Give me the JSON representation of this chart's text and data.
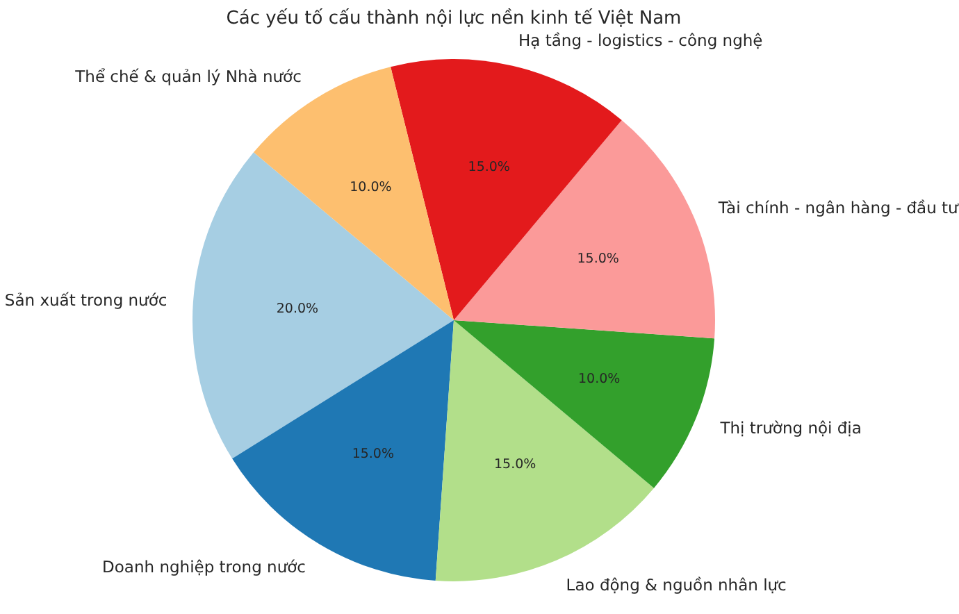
{
  "chart_data": {
    "type": "pie",
    "title": "Các yếu tố cấu thành nội lực nền kinh tế Việt Nam",
    "categories": [
      "Sản xuất trong nước",
      "Doanh nghiệp trong nước",
      "Lao động & nguồn nhân lực",
      "Thị trường nội địa",
      "Tài chính - ngân hàng - đầu tư",
      "Hạ tầng - logistics - công nghệ",
      "Thể chế & quản lý Nhà nước"
    ],
    "values": [
      20,
      15,
      15,
      10,
      15,
      15,
      10
    ],
    "colors": [
      "#a6cee3",
      "#1f78b4",
      "#b2df8a",
      "#33a02c",
      "#fb9a99",
      "#e31a1c",
      "#fdbf6f"
    ],
    "value_labels": [
      "20.0%",
      "15.0%",
      "15.0%",
      "10.0%",
      "15.0%",
      "15.0%",
      "10.0%"
    ]
  }
}
